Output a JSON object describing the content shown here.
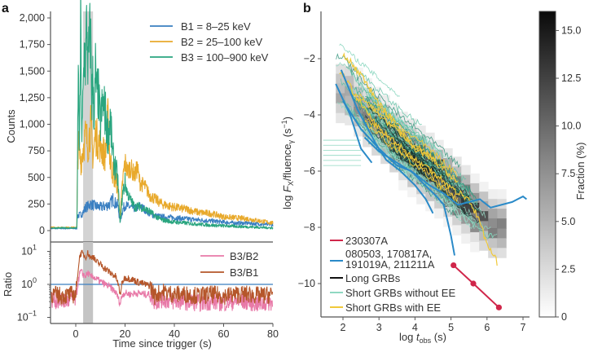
{
  "chart_data": [
    {
      "panel": "a",
      "subplot": "top",
      "type": "line",
      "title": "",
      "xlabel": "Time since trigger (s)",
      "ylabel": "Counts",
      "xlim": [
        -10,
        80
      ],
      "ylim": [
        -30,
        2050
      ],
      "xticks": [
        0,
        20,
        40,
        60,
        80
      ],
      "xtick_labels": [
        "0",
        "20",
        "40",
        "60",
        "80"
      ],
      "yticks": [
        0,
        250,
        500,
        750,
        1000,
        1250,
        1500,
        1750,
        2000
      ],
      "ytick_labels": [
        "0",
        "250",
        "500",
        "750",
        "1,000",
        "1,250",
        "1,500",
        "1,750",
        "2,000"
      ],
      "shaded_interval": [
        3,
        7
      ],
      "legend_position": "top-right",
      "series": [
        {
          "name": "B1 = 8–25 keV",
          "color": "#3a7fc1",
          "x": [
            -10,
            0.5,
            0.6,
            2,
            3,
            4,
            5,
            6,
            7,
            8,
            10,
            12,
            14,
            15,
            16,
            17,
            18,
            19,
            20,
            22,
            24,
            26,
            28,
            30,
            32,
            35,
            40,
            45,
            50,
            55,
            60,
            65,
            70,
            75,
            80
          ],
          "y": [
            20,
            20,
            140,
            150,
            170,
            220,
            230,
            250,
            240,
            230,
            220,
            230,
            250,
            300,
            260,
            240,
            90,
            190,
            240,
            220,
            210,
            230,
            200,
            160,
            140,
            130,
            120,
            110,
            100,
            90,
            80,
            70,
            70,
            60,
            55
          ]
        },
        {
          "name": "B2 = 25–100 keV",
          "color": "#e8a92b",
          "x": [
            -10,
            0.5,
            0.6,
            1,
            2,
            3,
            4,
            5,
            6,
            7,
            8,
            9,
            10,
            11,
            12,
            13,
            14,
            15,
            16,
            17,
            18,
            19,
            20,
            21,
            22,
            24,
            25,
            26,
            28,
            30,
            32,
            35,
            38,
            40,
            45,
            50,
            55,
            60,
            65,
            70,
            75,
            80
          ],
          "y": [
            30,
            30,
            500,
            800,
            650,
            780,
            900,
            800,
            1000,
            700,
            900,
            850,
            800,
            750,
            700,
            1050,
            650,
            550,
            480,
            420,
            120,
            450,
            650,
            550,
            600,
            520,
            590,
            450,
            420,
            330,
            300,
            250,
            230,
            220,
            200,
            170,
            160,
            130,
            120,
            110,
            90,
            70
          ]
        },
        {
          "name": "B3 = 100–900 keV",
          "color": "#2aa57f",
          "x": [
            -10,
            0.5,
            0.6,
            1,
            1.5,
            2,
            2.5,
            3,
            3.5,
            4,
            4.5,
            5,
            5.5,
            6,
            6.5,
            7,
            7.5,
            8,
            8.5,
            9,
            10,
            11,
            12,
            13,
            14,
            15,
            16,
            17,
            18,
            19,
            20,
            21,
            22,
            24,
            26,
            28,
            30,
            32,
            35,
            40,
            45,
            50,
            55,
            60,
            65,
            70,
            75,
            80
          ],
          "y": [
            25,
            25,
            300,
            1550,
            700,
            1950,
            800,
            1300,
            1700,
            1600,
            1950,
            1500,
            1750,
            1850,
            1200,
            1450,
            1000,
            1500,
            1250,
            1320,
            1000,
            1200,
            1100,
            900,
            1050,
            700,
            600,
            500,
            60,
            350,
            450,
            350,
            300,
            220,
            230,
            200,
            180,
            140,
            100,
            80,
            70,
            60,
            50,
            45,
            40,
            35,
            30,
            25
          ]
        }
      ]
    },
    {
      "panel": "a",
      "subplot": "bottom",
      "type": "line",
      "xlabel": "Time since trigger (s)",
      "ylabel": "Ratio",
      "yscale": "log",
      "xlim": [
        -10,
        80
      ],
      "ylim": [
        0.1,
        20
      ],
      "yticks": [
        0.1,
        1,
        10
      ],
      "ytick_labels": [
        "10−1",
        "100",
        "101"
      ],
      "reference_line": {
        "y": 1,
        "color": "#3a7fc1"
      },
      "shaded_interval": [
        3,
        7
      ],
      "legend_position": "top-right",
      "series": [
        {
          "name": "B3/B2",
          "color": "#e87aa8",
          "x": [
            -10,
            -5,
            0,
            0.5,
            1,
            2,
            3,
            4,
            5,
            6,
            7,
            8,
            10,
            12,
            14,
            16,
            18,
            19,
            20,
            22,
            25,
            28,
            30,
            32,
            35,
            40,
            45,
            50,
            55,
            60,
            65,
            70,
            75,
            80
          ],
          "y": [
            0.35,
            0.3,
            0.35,
            0.6,
            1.2,
            2.5,
            2.0,
            1.8,
            2.2,
            1.6,
            1.8,
            1.5,
            1.2,
            1.0,
            0.8,
            0.6,
            0.25,
            0.5,
            0.55,
            0.5,
            0.55,
            0.5,
            0.5,
            0.3,
            0.35,
            0.3,
            0.3,
            0.28,
            0.3,
            0.28,
            0.3,
            0.3,
            0.25,
            0.3
          ]
        },
        {
          "name": "B3/B1",
          "color": "#b5562a",
          "x": [
            -10,
            -5,
            0,
            0.5,
            1,
            2,
            3,
            4,
            5,
            6,
            7,
            8,
            10,
            12,
            14,
            16,
            18,
            19,
            20,
            22,
            25,
            28,
            30,
            32,
            35,
            40,
            45,
            50,
            55,
            60,
            65,
            70,
            75,
            80
          ],
          "y": [
            0.5,
            0.45,
            0.5,
            1.0,
            3.0,
            9.0,
            8.0,
            7.0,
            9.0,
            6.0,
            7.5,
            5.0,
            4.0,
            3.0,
            2.2,
            1.8,
            0.45,
            1.2,
            1.6,
            1.5,
            1.2,
            1.0,
            0.9,
            0.45,
            0.6,
            0.5,
            0.5,
            0.45,
            0.5,
            0.45,
            0.5,
            0.5,
            0.45,
            0.5
          ]
        }
      ]
    },
    {
      "panel": "b",
      "type": "line",
      "xlabel": "log t_obs (s)",
      "ylabel": "log F_X/fluence_γ (s−1)",
      "xlim": [
        1.4,
        7.2
      ],
      "ylim": [
        -11.2,
        -1
      ],
      "xticks": [
        2,
        3,
        4,
        5,
        6,
        7
      ],
      "xtick_labels": [
        "2",
        "3",
        "4",
        "5",
        "6",
        "7"
      ],
      "yticks": [
        -2,
        -4,
        -6,
        -8,
        -10
      ],
      "ytick_labels": [
        "−2",
        "−4",
        "−6",
        "−8",
        "−10"
      ],
      "legend_position": "bottom-left",
      "heatmap": {
        "name": "Long GRBs density",
        "colorbar_label": "Fraction (%)",
        "colorbar_range": [
          0,
          16
        ],
        "colorbar_ticks": [
          0,
          2.5,
          5.0,
          7.5,
          10.0,
          12.5,
          15.0
        ],
        "colorbar_tick_labels": [
          "0",
          "2.5",
          "5.0",
          "7.5",
          "10.0",
          "12.5",
          "15.0"
        ],
        "ridge": {
          "x": [
            2.0,
            2.5,
            3.0,
            3.5,
            4.0,
            4.5,
            5.0,
            5.5,
            6.0
          ],
          "y": [
            -3.0,
            -3.8,
            -4.4,
            -5.0,
            -5.5,
            -6.0,
            -6.6,
            -7.2,
            -7.8
          ]
        },
        "peak_fraction": 15
      },
      "series": [
        {
          "name": "230307A",
          "color": "#d0264a",
          "markers": true,
          "x": [
            5.07,
            5.62,
            6.33
          ],
          "y": [
            -9.35,
            -10.0,
            -10.85
          ]
        },
        {
          "name": "080503, 170817A, 191019A, 211211A",
          "color": "#2a8ac8",
          "lines": [
            {
              "x": [
                1.8,
                2.2,
                2.5,
                2.8
              ],
              "y": [
                -2.9,
                -4.0,
                -5.2,
                -5.7
              ]
            },
            {
              "x": [
                1.95,
                2.4,
                2.9,
                3.2,
                3.6,
                4.0,
                4.3,
                4.5
              ],
              "y": [
                -2.4,
                -3.8,
                -5.0,
                -5.6,
                -6.0,
                -6.5,
                -7.0,
                -7.5
              ]
            },
            {
              "x": [
                2.0,
                2.5,
                3.0,
                3.5,
                3.9,
                4.2,
                4.6,
                4.8,
                5.0,
                5.1
              ],
              "y": [
                -3.5,
                -4.5,
                -5.2,
                -5.8,
                -6.0,
                -6.4,
                -6.9,
                -7.2,
                -8.3,
                -9.0
              ]
            },
            {
              "x": [
                2.6,
                3.0,
                3.5,
                4.0,
                4.4,
                4.8,
                5.2,
                5.8,
                6.1,
                6.7,
                7.0,
                7.1
              ],
              "y": [
                -4.8,
                -5.3,
                -5.7,
                -6.1,
                -6.5,
                -6.8,
                -7.2,
                -7.0,
                -7.3,
                -7.1,
                -6.9,
                -7.0
              ]
            }
          ]
        },
        {
          "name": "Long GRBs",
          "color": "#111111"
        },
        {
          "name": "Short GRBs without EE",
          "color": "#8fd8c2"
        },
        {
          "name": "Short GRBs with EE",
          "color": "#f0c93a",
          "lines": [
            {
              "x": [
                1.9,
                2.2,
                2.6,
                3.0,
                3.5,
                4.0,
                4.5,
                5.0,
                5.5,
                5.8,
                6.0,
                6.3
              ],
              "y": [
                -2.4,
                -3.0,
                -3.8,
                -4.5,
                -5.0,
                -5.6,
                -6.0,
                -6.6,
                -7.0,
                -7.8,
                -8.6,
                -9.3
              ]
            },
            {
              "x": [
                2.0,
                2.5,
                3.0,
                3.5,
                4.0,
                4.6
              ],
              "y": [
                -1.8,
                -2.6,
                -3.6,
                -4.4,
                -5.2,
                -5.6
              ]
            }
          ]
        }
      ]
    }
  ],
  "labels": {
    "panel_a": "a",
    "panel_b": "b"
  }
}
